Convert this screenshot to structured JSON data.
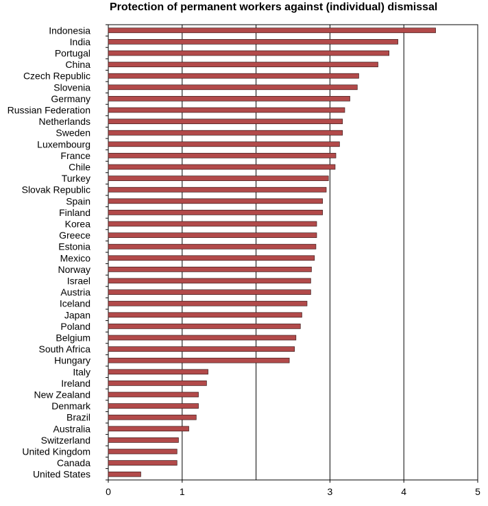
{
  "chart_data": {
    "type": "bar",
    "orientation": "horizontal",
    "title": "Protection of permanent workers against (individual) dismissal",
    "xlabel": "",
    "ylabel": "",
    "xlim": [
      0,
      5
    ],
    "xticks": [
      0,
      1,
      3,
      4,
      5
    ],
    "xtick_labels": [
      "0",
      "1",
      "3",
      "4",
      "5"
    ],
    "grid": "vertical",
    "bar_color": "#B24A4A",
    "categories": [
      "Indonesia",
      "India",
      "Portugal",
      "China",
      "Czech Republic",
      "Slovenia",
      "Germany",
      "Russian Federation",
      "Netherlands",
      "Sweden",
      "Luxembourg",
      "France",
      "Chile",
      "Turkey",
      "Slovak Republic",
      "Spain",
      "Finland",
      "Korea",
      "Greece",
      "Estonia",
      "Mexico",
      "Norway",
      "Israel",
      "Austria",
      "Iceland",
      "Japan",
      "Poland",
      "Belgium",
      "South Africa",
      "Hungary",
      "Italy",
      "Ireland",
      "New Zealand",
      "Denmark",
      "Brazil",
      "Australia",
      "Switzerland",
      "United Kingdom",
      "Canada",
      "United States"
    ],
    "values": [
      4.43,
      3.92,
      3.8,
      3.65,
      3.39,
      3.37,
      3.27,
      3.2,
      3.17,
      3.17,
      3.13,
      3.08,
      3.07,
      2.98,
      2.95,
      2.9,
      2.9,
      2.82,
      2.82,
      2.81,
      2.79,
      2.75,
      2.74,
      2.74,
      2.69,
      2.62,
      2.6,
      2.54,
      2.52,
      2.45,
      1.35,
      1.33,
      1.22,
      1.22,
      1.19,
      1.09,
      0.95,
      0.93,
      0.93,
      0.44
    ]
  }
}
